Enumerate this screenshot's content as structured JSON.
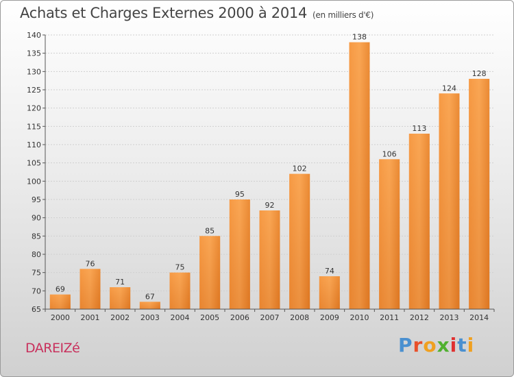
{
  "title": "Achats et Charges Externes 2000 à 2014",
  "subtitle": "(en milliers d'€)",
  "commune": "DAREIZé",
  "logo": {
    "letters": [
      "P",
      "r",
      "o",
      "x",
      "i",
      "t",
      "i"
    ],
    "colors": [
      "#4a90d0",
      "#e8502a",
      "#f0a020",
      "#50b030",
      "#e03030",
      "#4a90d0",
      "#f0a020"
    ]
  },
  "chart_data": {
    "type": "bar",
    "categories": [
      "2000",
      "2001",
      "2002",
      "2003",
      "2004",
      "2005",
      "2006",
      "2007",
      "2008",
      "2009",
      "2010",
      "2011",
      "2012",
      "2013",
      "2014"
    ],
    "values": [
      69,
      76,
      71,
      67,
      75,
      85,
      95,
      92,
      102,
      74,
      138,
      106,
      113,
      124,
      128
    ],
    "ylim": [
      65,
      140
    ],
    "yticks": [
      65,
      70,
      75,
      80,
      85,
      90,
      95,
      100,
      105,
      110,
      115,
      120,
      125,
      130,
      135,
      140
    ],
    "grid": true,
    "bar_color": "#f0882a"
  }
}
